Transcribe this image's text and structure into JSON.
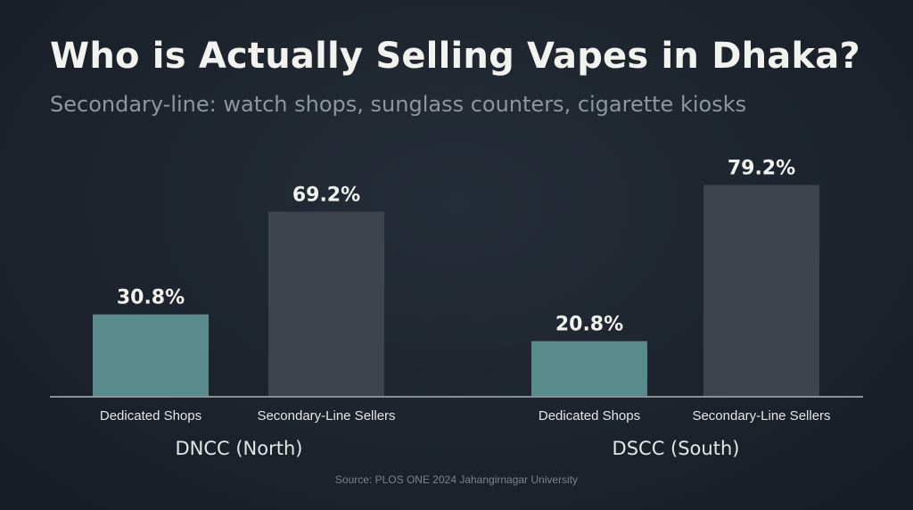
{
  "title": "Who is Actually Selling Vapes in Dhaka?",
  "subtitle": "Secondary-line: watch shops, sunglass counters, cigarette kiosks",
  "source": "Source: PLOS ONE 2024 Jahangirnagar University",
  "colors": {
    "background": "#1e252e",
    "dedicated": "#5a8b8c",
    "secondary": "#3d444d",
    "axis": "#8a9098",
    "value_label": "#f2f2ee",
    "category_label": "#e4e6e8"
  },
  "chart_data": {
    "type": "bar",
    "title": "Who is Actually Selling Vapes in Dhaka?",
    "subtitle": "Secondary-line: watch shops, sunglass counters, cigarette kiosks",
    "unit": "%",
    "ylim": [
      0,
      100
    ],
    "grid": false,
    "groups": [
      {
        "name": "DNCC (North)",
        "bars": [
          {
            "label": "Dedicated Shops",
            "value": 30.8,
            "display": "30.8%",
            "series": "dedicated"
          },
          {
            "label": "Secondary-Line Sellers",
            "value": 69.2,
            "display": "69.2%",
            "series": "secondary"
          }
        ]
      },
      {
        "name": "DSCC (South)",
        "bars": [
          {
            "label": "Dedicated Shops",
            "value": 20.8,
            "display": "20.8%",
            "series": "dedicated"
          },
          {
            "label": "Secondary-Line Sellers",
            "value": 79.2,
            "display": "79.2%",
            "series": "secondary"
          }
        ]
      }
    ]
  }
}
